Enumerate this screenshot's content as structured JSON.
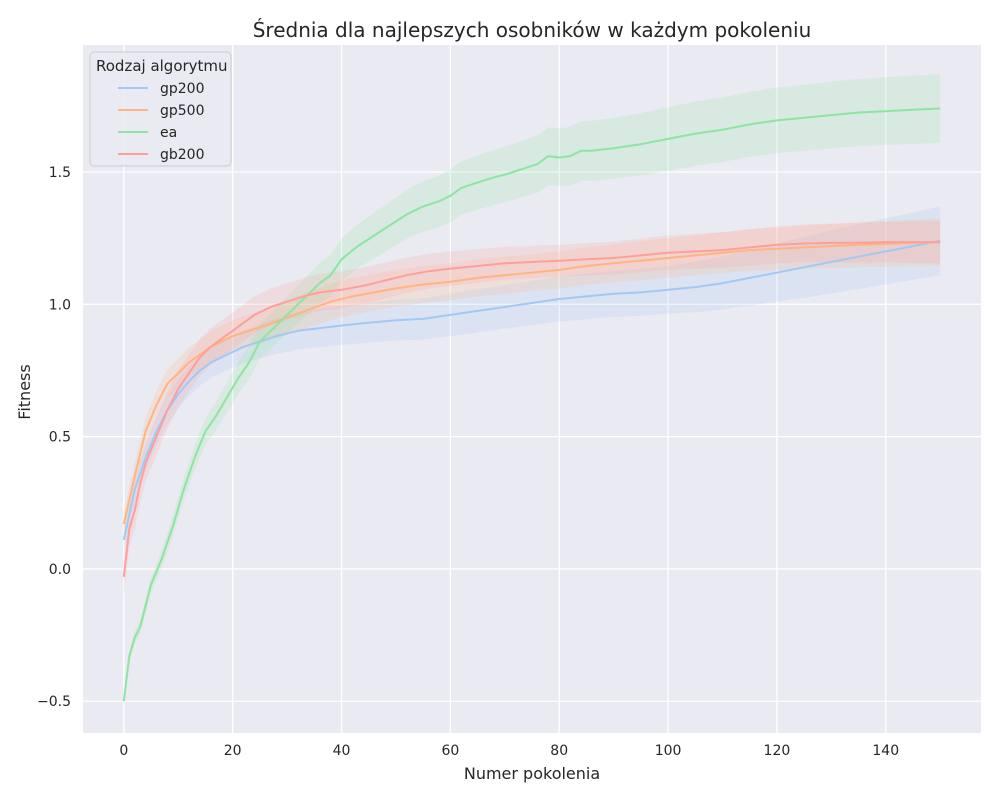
{
  "chart_data": {
    "type": "line",
    "title": "Średnia dla najlepszych osobników w każdym pokoleniu",
    "xlabel": "Numer pokolenia",
    "ylabel": "Fitness",
    "xlim": [
      -7.5,
      157.5
    ],
    "ylim": [
      -0.62,
      1.98
    ],
    "xticks": [
      0,
      20,
      40,
      60,
      80,
      100,
      120,
      140
    ],
    "yticks": [
      -0.5,
      0.0,
      0.5,
      1.0,
      1.5
    ],
    "xtick_labels": [
      "0",
      "20",
      "40",
      "60",
      "80",
      "100",
      "120",
      "140"
    ],
    "ytick_labels": [
      "−0.5",
      "0.0",
      "0.5",
      "1.0",
      "1.5"
    ],
    "grid": true,
    "legend": {
      "title": "Rodzaj algorytmu",
      "placement": "top-left"
    },
    "series": [
      {
        "name": "gp200",
        "color": "#a1c9f4",
        "points": [
          [
            0,
            0.11
          ],
          [
            2,
            0.3
          ],
          [
            4,
            0.42
          ],
          [
            6,
            0.52
          ],
          [
            8,
            0.6
          ],
          [
            10,
            0.66
          ],
          [
            12,
            0.71
          ],
          [
            14,
            0.75
          ],
          [
            16,
            0.78
          ],
          [
            18,
            0.8
          ],
          [
            20,
            0.82
          ],
          [
            22,
            0.84
          ],
          [
            25,
            0.86
          ],
          [
            28,
            0.88
          ],
          [
            32,
            0.9
          ],
          [
            36,
            0.91
          ],
          [
            40,
            0.92
          ],
          [
            45,
            0.93
          ],
          [
            50,
            0.94
          ],
          [
            55,
            0.945
          ],
          [
            60,
            0.96
          ],
          [
            65,
            0.975
          ],
          [
            70,
            0.99
          ],
          [
            75,
            1.005
          ],
          [
            80,
            1.02
          ],
          [
            85,
            1.03
          ],
          [
            90,
            1.04
          ],
          [
            95,
            1.045
          ],
          [
            100,
            1.055
          ],
          [
            105,
            1.065
          ],
          [
            110,
            1.08
          ],
          [
            115,
            1.1
          ],
          [
            120,
            1.12
          ],
          [
            125,
            1.14
          ],
          [
            130,
            1.16
          ],
          [
            135,
            1.18
          ],
          [
            140,
            1.2
          ],
          [
            145,
            1.22
          ],
          [
            150,
            1.24
          ]
        ],
        "band_width": [
          [
            0,
            0.05
          ],
          [
            20,
            0.06
          ],
          [
            30,
            0.07
          ],
          [
            60,
            0.08
          ],
          [
            100,
            0.09
          ],
          [
            130,
            0.12
          ],
          [
            150,
            0.13
          ]
        ]
      },
      {
        "name": "gp500",
        "color": "#ffb482",
        "points": [
          [
            0,
            0.17
          ],
          [
            2,
            0.35
          ],
          [
            4,
            0.52
          ],
          [
            6,
            0.62
          ],
          [
            8,
            0.7
          ],
          [
            10,
            0.74
          ],
          [
            12,
            0.78
          ],
          [
            14,
            0.81
          ],
          [
            16,
            0.84
          ],
          [
            18,
            0.86
          ],
          [
            20,
            0.88
          ],
          [
            23,
            0.9
          ],
          [
            26,
            0.92
          ],
          [
            30,
            0.95
          ],
          [
            34,
            0.98
          ],
          [
            38,
            1.01
          ],
          [
            42,
            1.03
          ],
          [
            46,
            1.045
          ],
          [
            50,
            1.06
          ],
          [
            55,
            1.075
          ],
          [
            60,
            1.085
          ],
          [
            65,
            1.1
          ],
          [
            70,
            1.11
          ],
          [
            75,
            1.12
          ],
          [
            80,
            1.13
          ],
          [
            85,
            1.145
          ],
          [
            90,
            1.155
          ],
          [
            95,
            1.165
          ],
          [
            100,
            1.175
          ],
          [
            105,
            1.185
          ],
          [
            110,
            1.195
          ],
          [
            115,
            1.205
          ],
          [
            120,
            1.21
          ],
          [
            125,
            1.215
          ],
          [
            130,
            1.22
          ],
          [
            135,
            1.225
          ],
          [
            140,
            1.228
          ],
          [
            145,
            1.232
          ],
          [
            150,
            1.235
          ]
        ],
        "band_width": [
          [
            0,
            0.05
          ],
          [
            20,
            0.06
          ],
          [
            40,
            0.07
          ],
          [
            80,
            0.07
          ],
          [
            120,
            0.08
          ],
          [
            150,
            0.09
          ]
        ]
      },
      {
        "name": "ea",
        "color": "#8de5a1",
        "points": [
          [
            0,
            -0.5
          ],
          [
            1,
            -0.33
          ],
          [
            2,
            -0.26
          ],
          [
            3,
            -0.22
          ],
          [
            5,
            -0.06
          ],
          [
            7,
            0.04
          ],
          [
            9,
            0.16
          ],
          [
            11,
            0.3
          ],
          [
            13,
            0.42
          ],
          [
            15,
            0.52
          ],
          [
            17,
            0.58
          ],
          [
            19,
            0.65
          ],
          [
            21,
            0.72
          ],
          [
            23,
            0.78
          ],
          [
            25,
            0.86
          ],
          [
            27,
            0.9
          ],
          [
            30,
            0.96
          ],
          [
            33,
            1.02
          ],
          [
            36,
            1.08
          ],
          [
            38,
            1.11
          ],
          [
            40,
            1.17
          ],
          [
            43,
            1.22
          ],
          [
            46,
            1.26
          ],
          [
            49,
            1.3
          ],
          [
            52,
            1.34
          ],
          [
            55,
            1.37
          ],
          [
            58,
            1.39
          ],
          [
            60,
            1.41
          ],
          [
            62,
            1.44
          ],
          [
            65,
            1.46
          ],
          [
            68,
            1.48
          ],
          [
            70,
            1.49
          ],
          [
            73,
            1.51
          ],
          [
            76,
            1.53
          ],
          [
            78,
            1.56
          ],
          [
            80,
            1.555
          ],
          [
            82,
            1.56
          ],
          [
            84,
            1.58
          ],
          [
            86,
            1.58
          ],
          [
            90,
            1.59
          ],
          [
            95,
            1.605
          ],
          [
            100,
            1.625
          ],
          [
            105,
            1.645
          ],
          [
            110,
            1.66
          ],
          [
            115,
            1.68
          ],
          [
            120,
            1.695
          ],
          [
            125,
            1.705
          ],
          [
            130,
            1.715
          ],
          [
            135,
            1.725
          ],
          [
            140,
            1.73
          ],
          [
            145,
            1.735
          ],
          [
            150,
            1.74
          ]
        ],
        "band_width": [
          [
            0,
            0.02
          ],
          [
            20,
            0.06
          ],
          [
            40,
            0.08
          ],
          [
            60,
            0.1
          ],
          [
            80,
            0.11
          ],
          [
            100,
            0.12
          ],
          [
            150,
            0.13
          ]
        ]
      },
      {
        "name": "gb200",
        "color": "#ff9f9b",
        "points": [
          [
            0,
            -0.03
          ],
          [
            1,
            0.15
          ],
          [
            2,
            0.22
          ],
          [
            3,
            0.32
          ],
          [
            4,
            0.4
          ],
          [
            6,
            0.5
          ],
          [
            8,
            0.6
          ],
          [
            10,
            0.68
          ],
          [
            12,
            0.74
          ],
          [
            14,
            0.8
          ],
          [
            16,
            0.84
          ],
          [
            18,
            0.87
          ],
          [
            20,
            0.9
          ],
          [
            22,
            0.93
          ],
          [
            24,
            0.96
          ],
          [
            27,
            0.99
          ],
          [
            30,
            1.01
          ],
          [
            33,
            1.03
          ],
          [
            36,
            1.045
          ],
          [
            40,
            1.055
          ],
          [
            44,
            1.07
          ],
          [
            48,
            1.09
          ],
          [
            52,
            1.11
          ],
          [
            56,
            1.125
          ],
          [
            60,
            1.135
          ],
          [
            65,
            1.145
          ],
          [
            70,
            1.155
          ],
          [
            75,
            1.16
          ],
          [
            80,
            1.165
          ],
          [
            85,
            1.17
          ],
          [
            90,
            1.175
          ],
          [
            95,
            1.185
          ],
          [
            100,
            1.195
          ],
          [
            105,
            1.2
          ],
          [
            110,
            1.205
          ],
          [
            115,
            1.215
          ],
          [
            120,
            1.225
          ],
          [
            125,
            1.23
          ],
          [
            130,
            1.232
          ],
          [
            135,
            1.233
          ],
          [
            140,
            1.235
          ],
          [
            145,
            1.235
          ],
          [
            150,
            1.235
          ]
        ],
        "band_width": [
          [
            0,
            0.07
          ],
          [
            20,
            0.07
          ],
          [
            40,
            0.07
          ],
          [
            80,
            0.06
          ],
          [
            120,
            0.07
          ],
          [
            150,
            0.08
          ]
        ]
      }
    ]
  }
}
